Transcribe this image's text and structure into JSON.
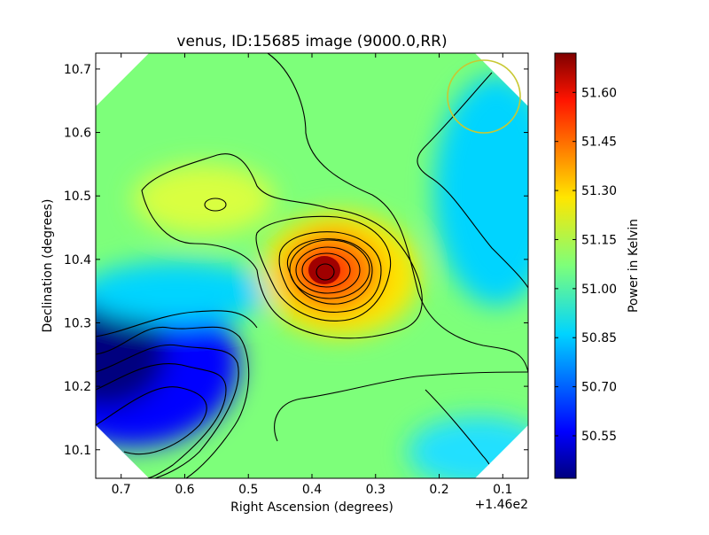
{
  "chart_data": {
    "type": "heatmap",
    "title": "venus, ID:15685 image (9000.0,RR)",
    "xlabel": "Right Ascension (degrees)",
    "ylabel": "Declination (degrees)",
    "x_offset_label": "+1.46e2",
    "xlim": [
      0.74,
      0.06
    ],
    "ylim": [
      10.055,
      10.725
    ],
    "x_ticks": [
      0.7,
      0.6,
      0.5,
      0.4,
      0.3,
      0.2,
      0.1
    ],
    "x_tick_labels": [
      "0.7",
      "0.6",
      "0.5",
      "0.4",
      "0.3",
      "0.2",
      "0.1"
    ],
    "y_ticks": [
      10.1,
      10.2,
      10.3,
      10.4,
      10.5,
      10.6,
      10.7
    ],
    "y_tick_labels": [
      "10.1",
      "10.2",
      "10.3",
      "10.4",
      "10.5",
      "10.6",
      "10.7"
    ],
    "colorbar": {
      "label": "Power in Kelvin",
      "range": [
        50.42,
        51.72
      ],
      "ticks": [
        50.55,
        50.7,
        50.85,
        51.0,
        51.15,
        51.3,
        51.45,
        51.6
      ],
      "tick_labels": [
        "50.55",
        "50.70",
        "50.85",
        "51.00",
        "51.15",
        "51.30",
        "51.45",
        "51.60"
      ],
      "colormap": "jet"
    },
    "features": [
      {
        "kind": "peak",
        "x": 0.375,
        "y": 10.375,
        "value": 51.7
      },
      {
        "kind": "trough",
        "x": 0.72,
        "y": 10.23,
        "value": 50.42
      },
      {
        "kind": "local_max",
        "x": 0.55,
        "y": 10.485,
        "value": 51.2
      }
    ],
    "beam_circle": {
      "x": 0.125,
      "y": 10.655,
      "color": "#c8c832"
    },
    "grid": false
  }
}
